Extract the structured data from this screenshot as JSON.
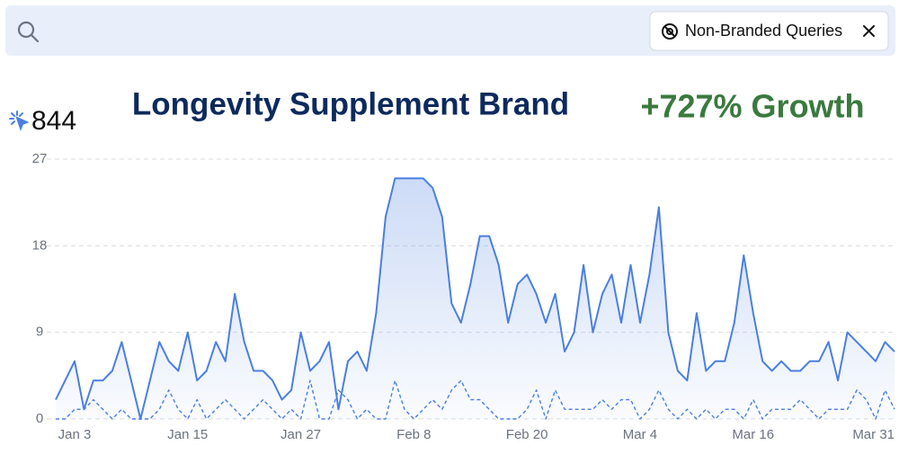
{
  "search": {
    "filter": "Non-Branded Queries"
  },
  "stats": {
    "count": "844"
  },
  "chart_data": {
    "type": "line",
    "title": "Longevity Supplement Brand",
    "annotation": "+727% Growth",
    "categories": [
      null,
      null,
      "Jan 3",
      null,
      null,
      null,
      null,
      null,
      null,
      null,
      null,
      null,
      null,
      null,
      "Jan 15",
      null,
      null,
      null,
      null,
      null,
      null,
      null,
      null,
      null,
      null,
      null,
      "Jan 27",
      null,
      null,
      null,
      null,
      null,
      null,
      null,
      null,
      null,
      null,
      null,
      "Feb 8",
      null,
      null,
      null,
      null,
      null,
      null,
      null,
      null,
      null,
      null,
      null,
      "Feb 20",
      null,
      null,
      null,
      null,
      null,
      null,
      null,
      null,
      null,
      null,
      null,
      "Mar 4",
      null,
      null,
      null,
      null,
      null,
      null,
      null,
      null,
      null,
      null,
      null,
      "Mar 16",
      null,
      null,
      null,
      null,
      null,
      null,
      null,
      null,
      null,
      null,
      null,
      null,
      null,
      null,
      "Mar 31"
    ],
    "series": [
      {
        "color": "#4a7fe0",
        "style": "solid",
        "area": true,
        "values": [
          2,
          4,
          6,
          1,
          4,
          4,
          5,
          8,
          4,
          0,
          4,
          8,
          6,
          5,
          9,
          4,
          5,
          8,
          6,
          13,
          8,
          5,
          5,
          4,
          2,
          3,
          9,
          5,
          6,
          8,
          1,
          6,
          7,
          5,
          11,
          21,
          25,
          25,
          25,
          25,
          24,
          21,
          12,
          10,
          14,
          19,
          19,
          16,
          10,
          14,
          15,
          13,
          10,
          13,
          7,
          9,
          16,
          9,
          13,
          15,
          10,
          16,
          10,
          15,
          22,
          9,
          5,
          4,
          11,
          5,
          6,
          6,
          10,
          17,
          11,
          6,
          5,
          6,
          5,
          5,
          6,
          6,
          8,
          4,
          9,
          8,
          7,
          6,
          8,
          7
        ]
      },
      {
        "color": "#4a7fe0",
        "style": "dashed",
        "area": false,
        "values": [
          0,
          0,
          1,
          1,
          2,
          1,
          0,
          1,
          0,
          0,
          0,
          1,
          3,
          1,
          0,
          2,
          0,
          1,
          2,
          1,
          0,
          1,
          2,
          1,
          0,
          1,
          0,
          4,
          0,
          0,
          3,
          2,
          0,
          1,
          0,
          0,
          4,
          1,
          0,
          1,
          2,
          1,
          3,
          4,
          2,
          2,
          1,
          0,
          0,
          0,
          1,
          3,
          0,
          3,
          1,
          1,
          1,
          1,
          2,
          1,
          2,
          2,
          0,
          1,
          3,
          1,
          0,
          1,
          0,
          1,
          0,
          1,
          1,
          0,
          2,
          0,
          1,
          1,
          1,
          2,
          1,
          0,
          1,
          1,
          1,
          3,
          2,
          0,
          3,
          1
        ]
      }
    ],
    "ylim": [
      0,
      27
    ],
    "yticks": [
      0,
      9,
      18,
      27
    ],
    "grid": true
  }
}
